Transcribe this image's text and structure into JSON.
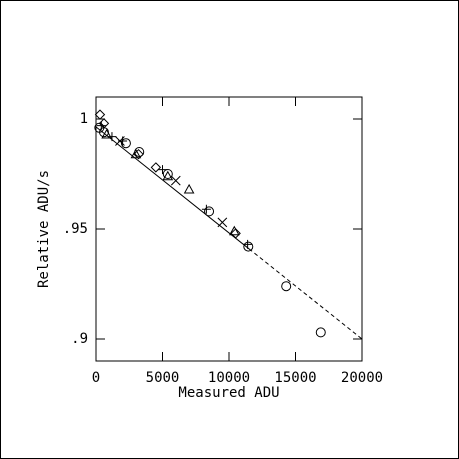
{
  "chart_data": {
    "type": "scatter",
    "x_label": "Measured ADU",
    "y_label": "Relative ADU/s",
    "xlim": [
      0,
      20000
    ],
    "xticks": [
      0,
      5000,
      10000,
      15000,
      20000
    ],
    "ylim": [
      0.89,
      1.01
    ],
    "yticks": [
      {
        "value": 0.9,
        "label": ".9"
      },
      {
        "value": 0.95,
        "label": ".95"
      },
      1
    ],
    "color": "#000000",
    "series": [
      {
        "marker": "circle",
        "x": [
          250,
          600,
          2250,
          3250,
          5400,
          8500,
          11450,
          14300,
          16900
        ],
        "values": [
          0.996,
          0.994,
          0.989,
          0.985,
          0.975,
          0.958,
          0.942,
          0.924,
          0.903
        ]
      },
      {
        "marker": "diamond",
        "x": [
          300,
          600,
          3200,
          4500,
          10500
        ],
        "values": [
          1.002,
          0.998,
          0.984,
          0.978,
          0.948
        ]
      },
      {
        "marker": "triangle",
        "x": [
          800,
          3000,
          5400,
          7000,
          10400
        ],
        "values": [
          0.993,
          0.984,
          0.974,
          0.968,
          0.949
        ]
      },
      {
        "marker": "plus",
        "x": [
          400,
          1200,
          2000,
          5000,
          8300,
          11400
        ],
        "values": [
          0.997,
          0.992,
          0.99,
          0.977,
          0.959,
          0.943
        ]
      },
      {
        "marker": "cross",
        "x": [
          1800,
          6000,
          9500
        ],
        "values": [
          0.99,
          0.972,
          0.953
        ]
      }
    ],
    "lines": [
      {
        "dashed": false,
        "x": [
          0,
          11500
        ],
        "values": [
          0.9964,
          0.941
        ]
      },
      {
        "dashed": true,
        "x": [
          11500,
          20000
        ],
        "values": [
          0.941,
          0.9
        ]
      }
    ]
  }
}
